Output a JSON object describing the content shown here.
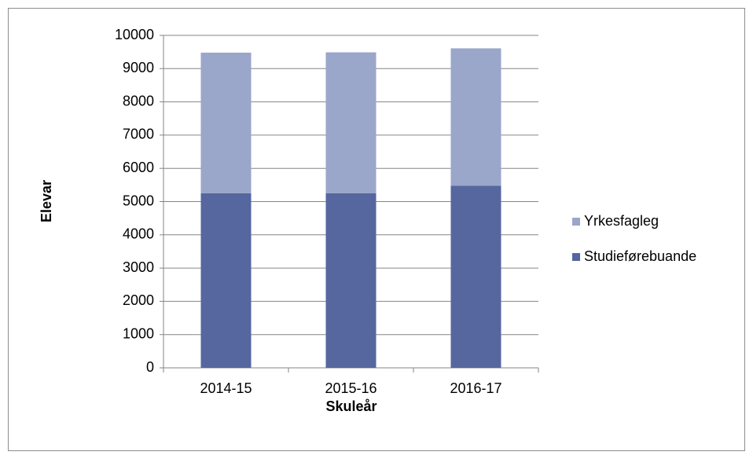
{
  "chart_data": {
    "type": "stacked_bar",
    "categories": [
      "2014-15",
      "2015-16",
      "2016-17"
    ],
    "series": [
      {
        "name": "Studieførebuande",
        "color": "#56669f",
        "values": [
          5250,
          5250,
          5480
        ]
      },
      {
        "name": "Yrkesfagleg",
        "color": "#9aa6ca",
        "values": [
          4230,
          4240,
          4130
        ]
      }
    ],
    "ylim": [
      0,
      10000
    ],
    "yticks": [
      0,
      1000,
      2000,
      3000,
      4000,
      5000,
      6000,
      7000,
      8000,
      9000,
      10000
    ],
    "grid": true,
    "ylabel": "Elevar",
    "xlabel": "Skuleår",
    "legend": "right"
  }
}
